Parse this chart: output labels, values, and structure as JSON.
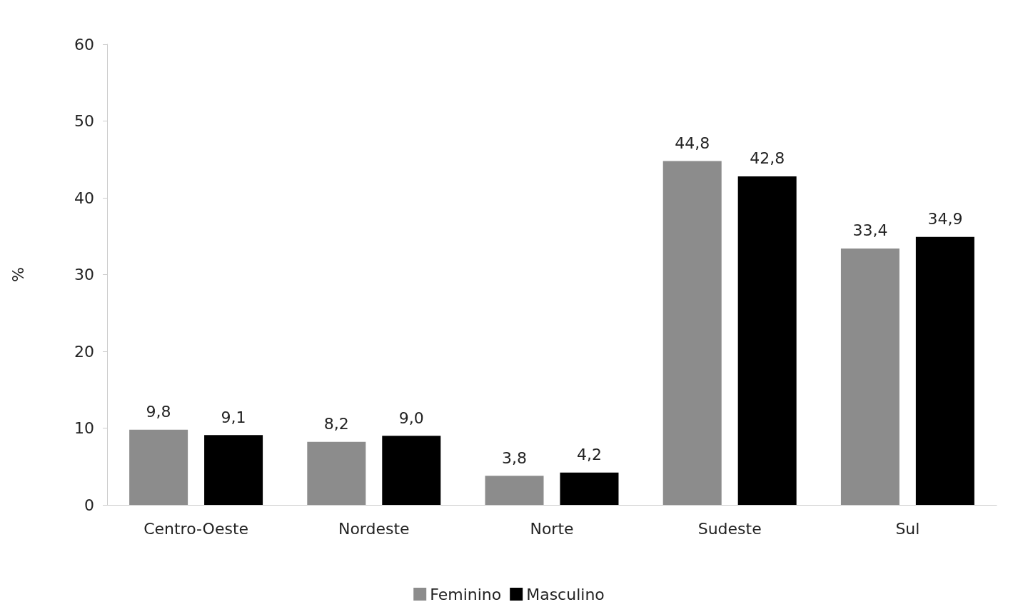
{
  "chart_data": {
    "type": "bar",
    "ylabel": "%",
    "categories": [
      "Centro-Oeste",
      "Nordeste",
      "Norte",
      "Sudeste",
      "Sul"
    ],
    "series": [
      {
        "name": "Feminino",
        "color": "#8c8c8c",
        "values": [
          9.8,
          8.2,
          3.8,
          44.8,
          33.4
        ],
        "value_labels": [
          "9,8",
          "8,2",
          "3,8",
          "44,8",
          "33,4"
        ]
      },
      {
        "name": "Masculino",
        "color": "#000000",
        "values": [
          9.1,
          9.0,
          4.2,
          42.8,
          34.9
        ],
        "value_labels": [
          "9,1",
          "9,0",
          "4,2",
          "42,8",
          "34,9"
        ]
      }
    ],
    "ylim": [
      0,
      60
    ],
    "yticks": [
      0,
      10,
      20,
      30,
      40,
      50,
      60
    ],
    "grid": false,
    "legend": "bottom"
  }
}
